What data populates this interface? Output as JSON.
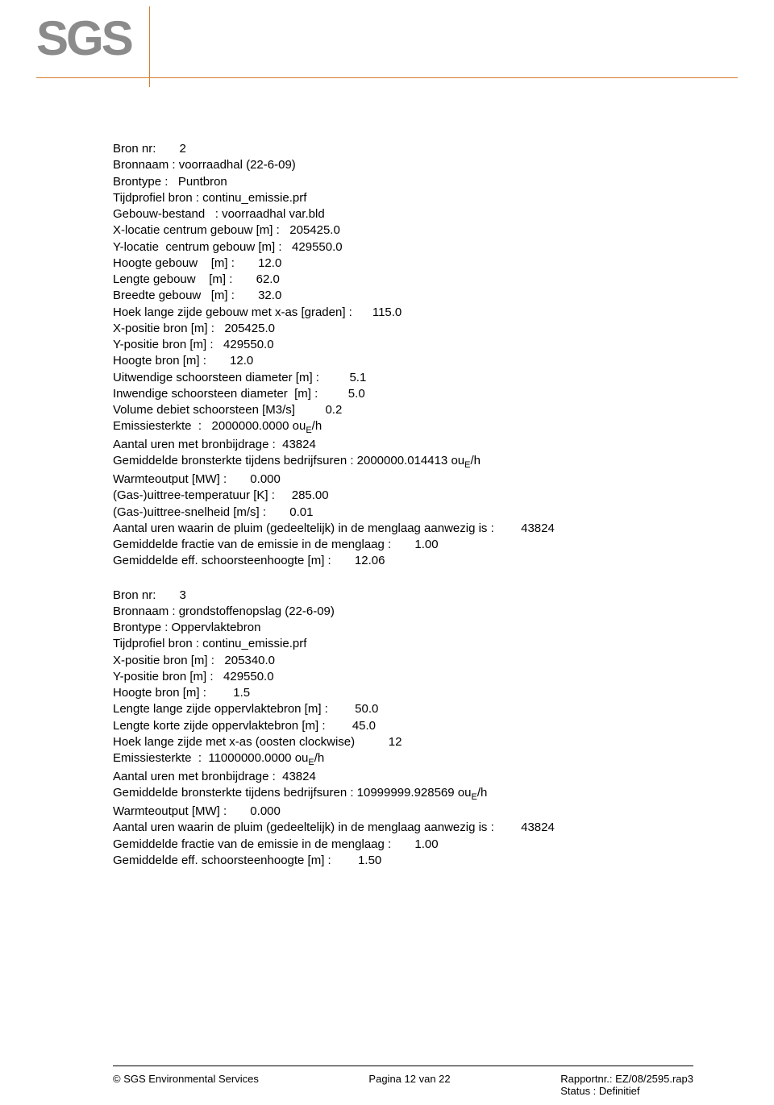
{
  "logo": {
    "text": "SGS"
  },
  "block1": {
    "lines": [
      "Bron nr:       2",
      "Bronnaam : voorraadhal (22-6-09)",
      "Brontype :   Puntbron",
      "Tijdprofiel bron : continu_emissie.prf",
      "Gebouw-bestand   : voorraadhal var.bld",
      "X-locatie centrum gebouw [m] :   205425.0",
      "Y-locatie  centrum gebouw [m] :   429550.0",
      "Hoogte gebouw    [m] :       12.0",
      "Lengte gebouw    [m] :       62.0",
      "Breedte gebouw   [m] :       32.0",
      "Hoek lange zijde gebouw met x-as [graden] :      115.0",
      "X-positie bron [m] :   205425.0",
      "Y-positie bron [m] :   429550.0",
      "Hoogte bron [m] :       12.0",
      "Uitwendige schoorsteen diameter [m] :         5.1",
      "Inwendige schoorsteen diameter  [m] :         5.0",
      "Volume debiet schoorsteen [M3/s]         0.2",
      "Emissiesterkte  :   2000000.0000 ou{E}/h",
      "Aantal uren met bronbijdrage :  43824",
      "Gemiddelde bronsterkte tijdens bedrijfsuren : 2000000.014413 ou{E}/h",
      "Warmteoutput [MW] :       0.000",
      "(Gas-)uittree-temperatuur [K] :     285.00",
      "(Gas-)uittree-snelheid [m/s] :       0.01",
      "Aantal uren waarin de pluim (gedeeltelijk) in de menglaag aanwezig is :        43824",
      "Gemiddelde fractie van de emissie in de menglaag :       1.00",
      "Gemiddelde eff. schoorsteenhoogte [m] :       12.06"
    ]
  },
  "block2": {
    "lines": [
      "Bron nr:       3",
      "Bronnaam : grondstoffenopslag (22-6-09)",
      "Brontype : Oppervlaktebron",
      "Tijdprofiel bron : continu_emissie.prf",
      "X-positie bron [m] :   205340.0",
      "Y-positie bron [m] :   429550.0",
      "Hoogte bron [m] :        1.5",
      "Lengte lange zijde oppervlaktebron [m] :        50.0",
      "Lengte korte zijde oppervlaktebron [m] :        45.0",
      "Hoek lange zijde met x-as (oosten clockwise)          12",
      "Emissiesterkte  :  11000000.0000 ou{E}/h",
      "Aantal uren met bronbijdrage :  43824",
      "Gemiddelde bronsterkte tijdens bedrijfsuren : 10999999.928569 ou{E}/h",
      "Warmteoutput [MW] :       0.000",
      "Aantal uren waarin de pluim (gedeeltelijk) in de menglaag aanwezig is :        43824",
      "Gemiddelde fractie van de emissie in de menglaag :       1.00",
      "Gemiddelde eff. schoorsteenhoogte [m] :        1.50"
    ]
  },
  "footer": {
    "left": "© SGS Environmental Services",
    "center": "Pagina 12 van 22",
    "right1": "Rapportnr.: EZ/08/2595.rap3",
    "right2": "Status      : Definitief"
  }
}
